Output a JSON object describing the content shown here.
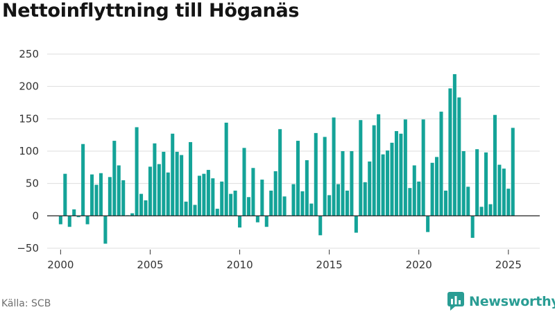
{
  "title": "Nettoinflyttning till Höganäs",
  "source": "Källa: SCB",
  "brand": "Newsworthy",
  "colors": {
    "bar": "#14a398",
    "grid": "#dddddd",
    "axis": "#333333",
    "tick_text": "#333333",
    "brand": "#2a9d94"
  },
  "chart_data": {
    "type": "bar",
    "x_ticks": [
      2000,
      2005,
      2010,
      2015,
      2020,
      2025
    ],
    "y_ticks": [
      -50,
      0,
      50,
      100,
      150,
      200,
      250
    ],
    "xlim": [
      1999.25,
      2026.75
    ],
    "ylim": [
      -50,
      250
    ],
    "grid": true,
    "series": [
      {
        "values": [
          -13,
          65,
          -17,
          10,
          -2,
          111,
          -13,
          64,
          48,
          66,
          -43,
          60,
          116,
          78,
          55,
          1,
          4,
          137,
          34,
          24,
          76,
          112,
          80,
          99,
          67,
          127,
          99,
          94,
          22,
          114,
          17,
          62,
          65,
          71,
          58,
          11,
          53,
          144,
          34,
          39,
          -18,
          105,
          29,
          74,
          -10,
          56,
          -17,
          39,
          69,
          134,
          30,
          1,
          49,
          116,
          38,
          86,
          19,
          128,
          -30,
          122,
          32,
          152,
          49,
          100,
          39,
          100,
          -26,
          148,
          52,
          84,
          140,
          157,
          95,
          101,
          113,
          131,
          127,
          149,
          43,
          78,
          53,
          149,
          -25,
          82,
          91,
          161,
          39,
          197,
          219,
          183,
          100,
          45,
          -34,
          103,
          14,
          98,
          18,
          156,
          79,
          73,
          42,
          136
        ]
      }
    ]
  }
}
